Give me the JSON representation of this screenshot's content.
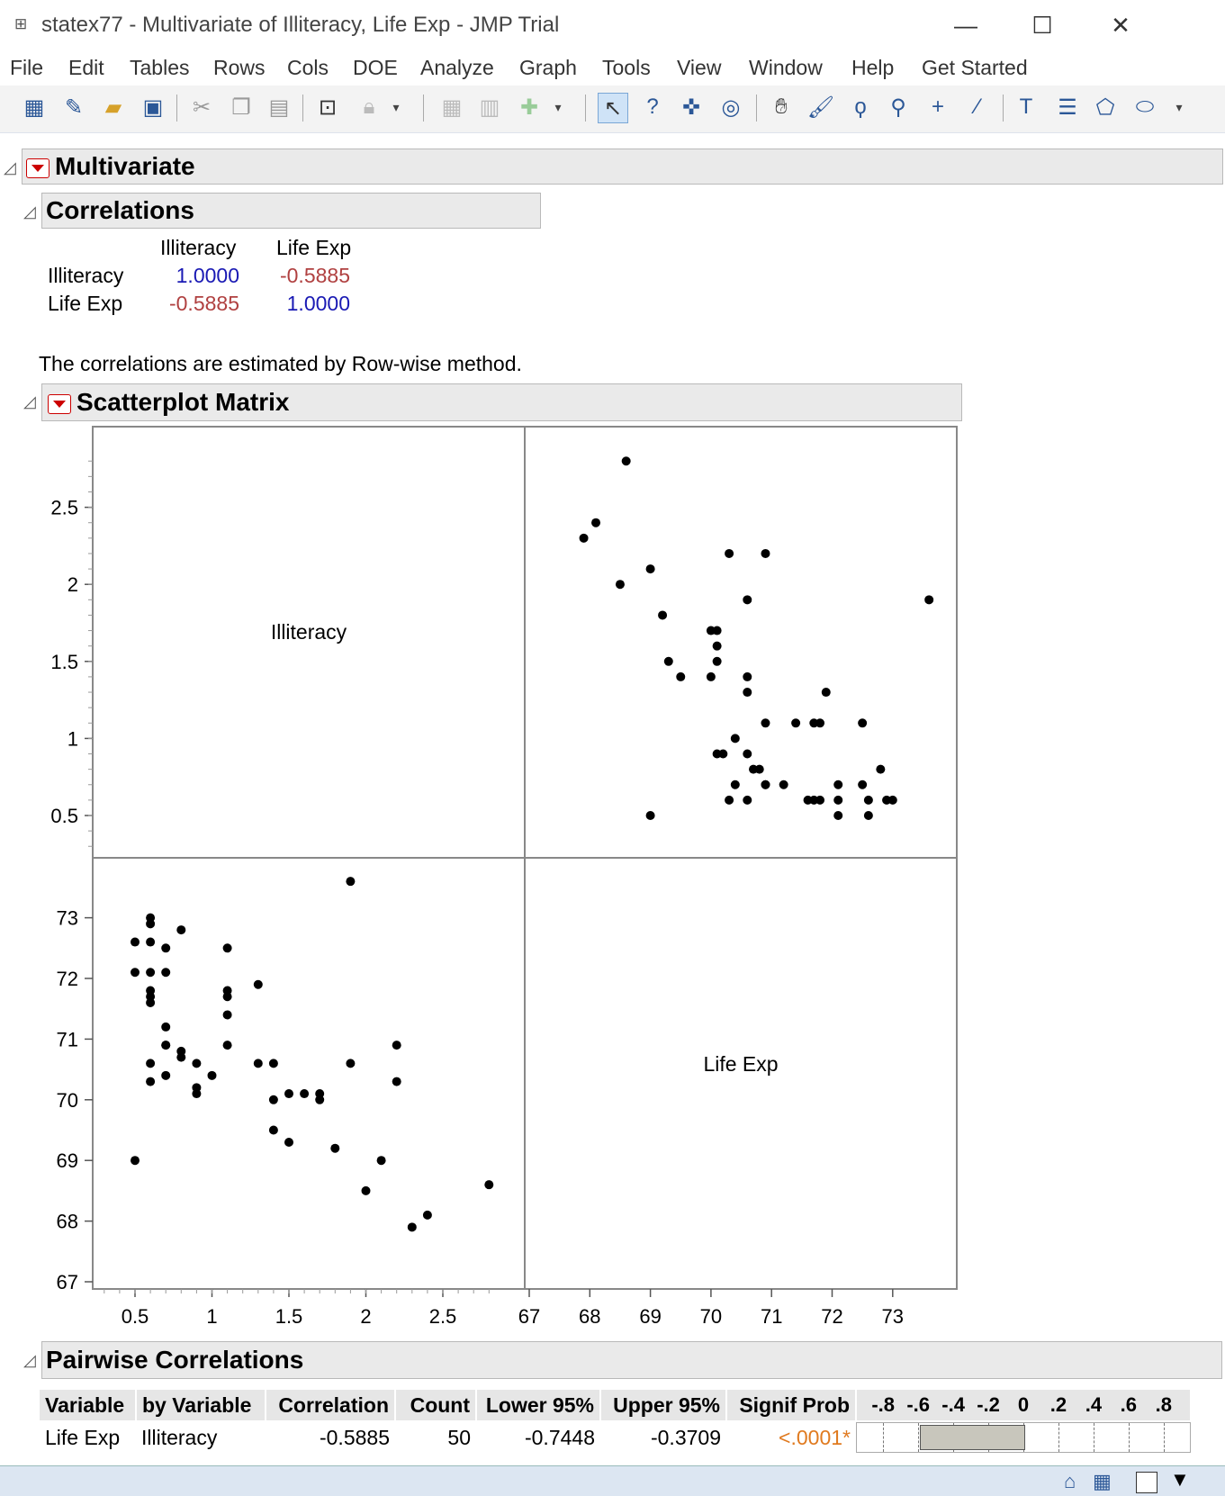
{
  "window": {
    "title": "statex77 - Multivariate of Illiteracy, Life Exp - JMP Trial",
    "minimize": "—",
    "maximize": "☐",
    "close": "✕"
  },
  "menu": [
    "File",
    "Edit",
    "Tables",
    "Rows",
    "Cols",
    "DOE",
    "Analyze",
    "Graph",
    "Tools",
    "View",
    "Window",
    "Help",
    "Get Started"
  ],
  "toolbar_icons": [
    "new-data-table-icon",
    "new-script-icon",
    "open-icon",
    "save-icon",
    "cut-icon",
    "copy-icon",
    "paste-icon",
    "script-editor-icon",
    "lock-icon",
    "overflow-icon",
    "data-table-view-icon",
    "split-icon",
    "add-icon",
    "overflow-icon",
    "arrow-icon",
    "help-icon",
    "crosshair-icon",
    "target-icon",
    "hand-icon",
    "brush-icon",
    "lasso-icon",
    "magnifier-icon",
    "plus-icon",
    "line-icon",
    "annotate-icon",
    "simple-shape-icon",
    "polygon-icon",
    "ellipse-icon",
    "overflow-icon"
  ],
  "multivariate": {
    "title": "Multivariate"
  },
  "correlations": {
    "title": "Correlations",
    "col_headers": [
      "Illiteracy",
      "Life Exp"
    ],
    "rows": [
      {
        "label": "Illiteracy",
        "values": [
          "1.0000",
          "-0.5885"
        ]
      },
      {
        "label": "Life Exp",
        "values": [
          "-0.5885",
          "1.0000"
        ]
      }
    ],
    "note": "The correlations are estimated by Row-wise method."
  },
  "scatterplot": {
    "title": "Scatterplot Matrix",
    "cell_labels": [
      "Illiteracy",
      "Life Exp"
    ],
    "y_ticks_top": [
      "2.5",
      "2",
      "1.5",
      "1",
      "0.5"
    ],
    "y_ticks_bottom": [
      "73",
      "72",
      "71",
      "70",
      "69",
      "68",
      "67"
    ],
    "x_ticks_left": [
      "0.5",
      "1",
      "1.5",
      "2",
      "2.5"
    ],
    "x_ticks_right": [
      "67",
      "68",
      "69",
      "70",
      "71",
      "72",
      "73"
    ]
  },
  "chart_data": {
    "type": "scatter",
    "title": "",
    "variables": [
      "Illiteracy",
      "Life Exp"
    ],
    "illiteracy_range": [
      0.25,
      2.9
    ],
    "lifeexp_range": [
      67,
      73.9
    ],
    "series": [
      {
        "name": "",
        "points": [
          [
            2.8,
            68.6
          ],
          [
            2.4,
            68.1
          ],
          [
            2.3,
            67.9
          ],
          [
            2.0,
            68.5
          ],
          [
            2.1,
            69.0
          ],
          [
            2.2,
            70.9
          ],
          [
            2.2,
            70.3
          ],
          [
            1.8,
            69.2
          ],
          [
            1.7,
            70.1
          ],
          [
            1.9,
            70.6
          ],
          [
            1.9,
            73.6
          ],
          [
            1.5,
            69.3
          ],
          [
            1.4,
            69.5
          ],
          [
            1.6,
            70.1
          ],
          [
            1.7,
            70.0
          ],
          [
            1.4,
            70.0
          ],
          [
            1.3,
            71.9
          ],
          [
            1.4,
            70.6
          ],
          [
            1.3,
            70.6
          ],
          [
            1.1,
            70.9
          ],
          [
            1.1,
            71.4
          ],
          [
            1.1,
            71.7
          ],
          [
            1.1,
            71.8
          ],
          [
            1.1,
            72.5
          ],
          [
            1.0,
            70.4
          ],
          [
            0.9,
            70.1
          ],
          [
            0.9,
            70.2
          ],
          [
            0.9,
            70.6
          ],
          [
            0.8,
            70.7
          ],
          [
            0.8,
            70.8
          ],
          [
            0.8,
            72.8
          ],
          [
            0.7,
            70.4
          ],
          [
            0.7,
            70.9
          ],
          [
            0.7,
            71.2
          ],
          [
            0.7,
            72.1
          ],
          [
            0.7,
            72.5
          ],
          [
            0.6,
            70.3
          ],
          [
            0.6,
            70.6
          ],
          [
            0.6,
            71.6
          ],
          [
            0.6,
            71.7
          ],
          [
            0.6,
            71.8
          ],
          [
            0.6,
            72.1
          ],
          [
            0.6,
            72.6
          ],
          [
            0.6,
            72.9
          ],
          [
            0.6,
            73.0
          ],
          [
            0.5,
            72.6
          ],
          [
            0.5,
            72.1
          ],
          [
            0.5,
            69.0
          ],
          [
            0.7,
            70.9
          ],
          [
            1.5,
            70.1
          ]
        ]
      }
    ]
  },
  "pairwise": {
    "title": "Pairwise Correlations",
    "headers": [
      "Variable",
      "by Variable",
      "Correlation",
      "Count",
      "Lower 95%",
      "Upper 95%",
      "Signif Prob"
    ],
    "bar_axis_labels": [
      "-.8",
      "-.6",
      "-.4",
      "-.2",
      "0",
      ".2",
      ".4",
      ".6",
      ".8"
    ],
    "rows": [
      {
        "variable": "Life Exp",
        "by": "Illiteracy",
        "correlation": "-0.5885",
        "count": "50",
        "lower": "-0.7448",
        "upper": "-0.3709",
        "prob": "<.0001*",
        "corr_value": -0.5885
      }
    ]
  }
}
